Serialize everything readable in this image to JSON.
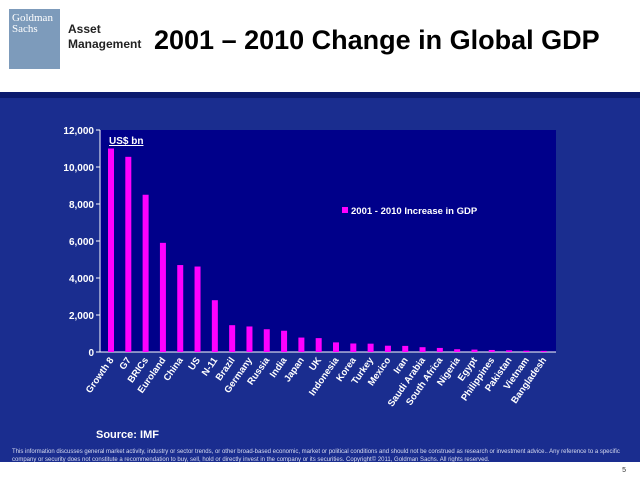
{
  "header": {
    "logo_line1": "Goldman",
    "logo_line2": "Sachs",
    "unit_line1": "Asset",
    "unit_line2": "Management",
    "title": "2001 – 2010 Change in Global GDP"
  },
  "colors": {
    "background": "#1a2d8f",
    "plot_background": "#00008a",
    "bar": "#ff00ff",
    "axis_text": "#ffffff"
  },
  "chart_data": {
    "type": "bar",
    "title": "",
    "ylabel": "US$ bn",
    "xlabel": "",
    "ylim": [
      0,
      12000
    ],
    "yticks": [
      0,
      2000,
      4000,
      6000,
      8000,
      10000,
      12000
    ],
    "ytick_labels": [
      "0",
      "2,000",
      "4,000",
      "6,000",
      "8,000",
      "10,000",
      "12,000"
    ],
    "legend": "2001 - 2010 Increase in GDP",
    "categories": [
      "Growth 8",
      "G7",
      "BRICs",
      "Euroland",
      "China",
      "US",
      "N-11",
      "Brazil",
      "Germany",
      "Russia",
      "India",
      "Japan",
      "UK",
      "Indonesia",
      "Korea",
      "Turkey",
      "Mexico",
      "Iran",
      "Saudi Arabia",
      "South Africa",
      "Nigeria",
      "Egypt",
      "Philippines",
      "Pakistan",
      "Vietnam",
      "Bangladesh"
    ],
    "values": [
      11000,
      10550,
      8500,
      5900,
      4700,
      4620,
      2800,
      1450,
      1380,
      1230,
      1150,
      780,
      750,
      520,
      460,
      450,
      340,
      330,
      260,
      220,
      150,
      130,
      110,
      90,
      70,
      60
    ]
  },
  "source": "Source: IMF",
  "disclaimer": "This information discusses general market activity, industry or sector trends, or other broad-based economic, market or political conditions and should not be construed as research or investment advice.. Any reference to a specific company or security does not constitute a recommendation to buy, sell, hold or directly invest in the company or its securities. Copyright© 2011, Goldman Sachs. All rights reserved.",
  "page_number": "5"
}
